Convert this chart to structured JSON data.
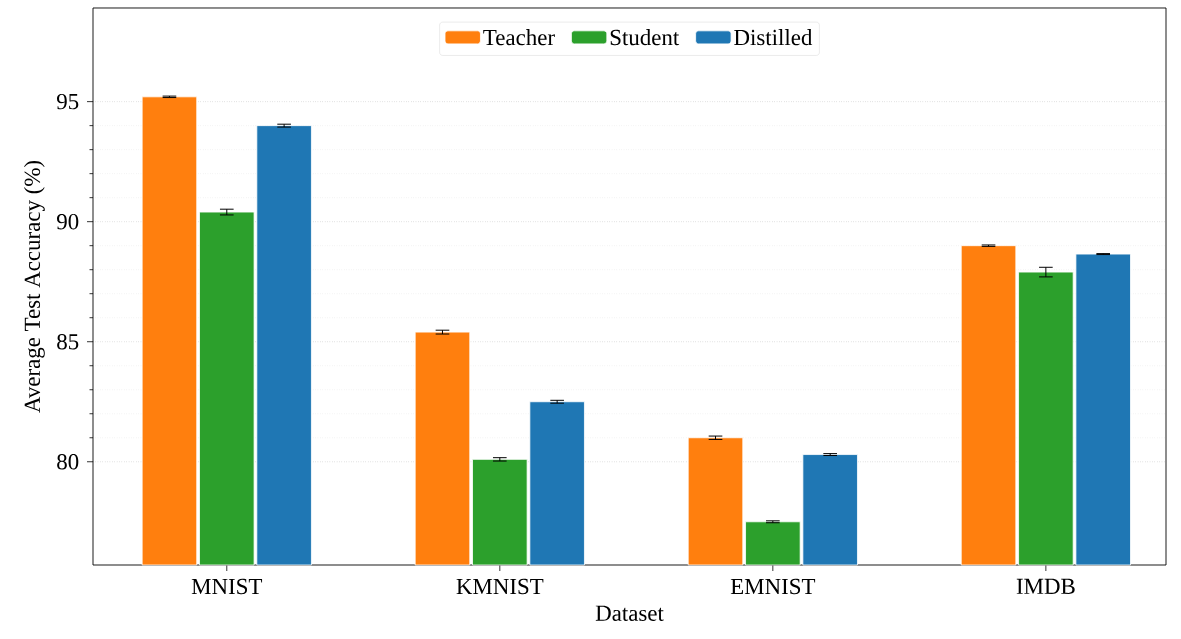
{
  "chart_data": {
    "type": "bar",
    "xlabel": "Dataset",
    "ylabel": "Average Test Accuracy (%)",
    "categories": [
      "MNIST",
      "KMNIST",
      "EMNIST",
      "IMDB"
    ],
    "series": [
      {
        "name": "Teacher",
        "color": "#ff7f0e",
        "values": [
          95.2,
          85.4,
          81.0,
          89.0
        ],
        "errors": [
          0.03,
          0.08,
          0.07,
          0.03
        ]
      },
      {
        "name": "Student",
        "color": "#2ca02c",
        "values": [
          90.4,
          80.1,
          77.5,
          87.9
        ],
        "errors": [
          0.12,
          0.07,
          0.04,
          0.2
        ]
      },
      {
        "name": "Distilled",
        "color": "#1f77b4",
        "values": [
          94.0,
          82.5,
          80.3,
          88.65
        ],
        "errors": [
          0.06,
          0.06,
          0.04,
          0.02
        ]
      }
    ],
    "ylim": [
      75.7,
      98.9
    ],
    "yticks": [
      80,
      85,
      90,
      95
    ],
    "grid": "y",
    "legend": "top"
  }
}
